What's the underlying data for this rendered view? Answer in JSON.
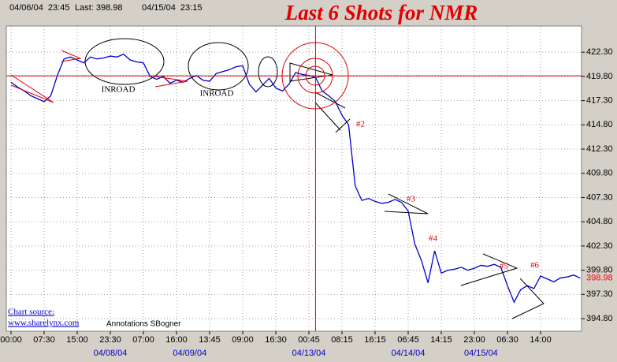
{
  "chart_data": {
    "type": "line",
    "title": "Last 6 Shots for NMR",
    "header": [
      "04/06/04  23:45",
      "Last: 398.98",
      "04/15/04  23:15"
    ],
    "x": [
      0,
      1,
      2,
      3,
      4,
      5,
      6,
      7,
      8,
      9,
      10,
      11,
      12,
      13,
      14,
      15,
      16,
      17,
      18,
      19,
      20,
      21,
      22,
      23,
      24,
      25,
      26,
      27,
      28,
      29,
      30,
      31,
      32,
      33,
      34,
      35,
      36,
      37,
      38,
      39,
      40,
      41,
      42,
      43,
      44,
      45,
      46,
      47,
      48,
      49,
      50,
      51,
      52,
      53,
      54,
      55,
      56,
      57,
      58,
      59,
      60,
      61,
      62,
      63,
      64,
      65,
      66,
      67,
      68,
      69,
      70,
      71,
      72,
      73,
      74,
      75,
      76,
      77,
      78,
      79,
      80,
      81,
      82,
      83,
      84,
      85,
      86
    ],
    "series": [
      {
        "color": "#0000cc",
        "values": [
          419.2,
          418.7,
          418.3,
          417.8,
          417.5,
          417.2,
          417.8,
          419.9,
          421.6,
          421.8,
          421.5,
          421.2,
          421.8,
          421.6,
          421.7,
          421.9,
          421.8,
          422.1,
          421.5,
          421.3,
          421.2,
          419.8,
          419.5,
          419.8,
          419.1,
          419.4,
          419.2,
          419.6,
          419.9,
          419.4,
          419.3,
          420.1,
          420.3,
          420.5,
          420.8,
          420.9,
          419.0,
          418.2,
          418.9,
          419.6,
          418.6,
          418.3,
          419.0,
          420.2,
          420.0,
          419.9,
          419.7,
          418.3,
          417.8,
          417.2,
          415.8,
          414.8,
          408.5,
          407.0,
          407.2,
          406.9,
          406.7,
          406.8,
          407.1,
          406.8,
          405.9,
          402.5,
          400.8,
          398.5,
          401.8,
          399.5,
          399.8,
          399.9,
          400.1,
          399.8,
          400.0,
          400.3,
          400.2,
          400.4,
          400.1,
          398.2,
          396.5,
          397.8,
          398.2,
          397.9,
          399.2,
          398.9,
          398.6,
          399.0,
          399.1,
          399.3,
          398.98
        ]
      }
    ],
    "last_color": "#ff0000",
    "xlim": [
      0,
      86
    ],
    "xticks": [
      {
        "value": 0,
        "label": "00:00"
      },
      {
        "value": 5,
        "label": "07:30"
      },
      {
        "value": 10,
        "label": "15:00"
      },
      {
        "value": 15,
        "label": "23:30"
      },
      {
        "value": 20,
        "label": "07:00"
      },
      {
        "value": 25,
        "label": "16:00"
      },
      {
        "value": 30,
        "label": "13:45"
      },
      {
        "value": 35,
        "label": "09:00"
      },
      {
        "value": 40,
        "label": "16:30"
      },
      {
        "value": 45,
        "label": "00:45"
      },
      {
        "value": 50,
        "label": "08:15"
      },
      {
        "value": 55,
        "label": "16:15"
      },
      {
        "value": 60,
        "label": "06:45"
      },
      {
        "value": 65,
        "label": "14:15"
      },
      {
        "value": 70,
        "label": "23:00"
      },
      {
        "value": 75,
        "label": "06:30"
      },
      {
        "value": 80,
        "label": "14:00"
      }
    ],
    "date_labels": [
      {
        "value": 15,
        "label": "04/08/04"
      },
      {
        "value": 27,
        "label": "04/09/04"
      },
      {
        "value": 45,
        "label": "04/13/04"
      },
      {
        "value": 60,
        "label": "04/14/04"
      },
      {
        "value": 71,
        "label": "04/15/04"
      }
    ],
    "ylim": [
      393.5,
      425.0
    ],
    "yticks": [
      {
        "value": 394.8,
        "label": "394.80"
      },
      {
        "value": 397.3,
        "label": "397.30"
      },
      {
        "value": 399.8,
        "label": "399.80"
      },
      {
        "value": 402.3,
        "label": "402.30"
      },
      {
        "value": 404.8,
        "label": "404.80"
      },
      {
        "value": 407.3,
        "label": "407.30"
      },
      {
        "value": 409.8,
        "label": "409.80"
      },
      {
        "value": 412.3,
        "label": "412.30"
      },
      {
        "value": 414.8,
        "label": "414.80"
      },
      {
        "value": 417.3,
        "label": "417.30"
      },
      {
        "value": 419.8,
        "label": "419.80"
      },
      {
        "value": 422.3,
        "label": "422.30"
      }
    ],
    "grid": true,
    "crosshair": {
      "x": 46,
      "y": 419.86
    },
    "annotations": [
      "INROAD",
      "INROAD",
      "#2",
      "#3",
      "#4",
      "#5",
      "#6"
    ],
    "source": [
      "Chart source:",
      "www.sharelynx.com",
      "Annotations SBogner"
    ]
  }
}
